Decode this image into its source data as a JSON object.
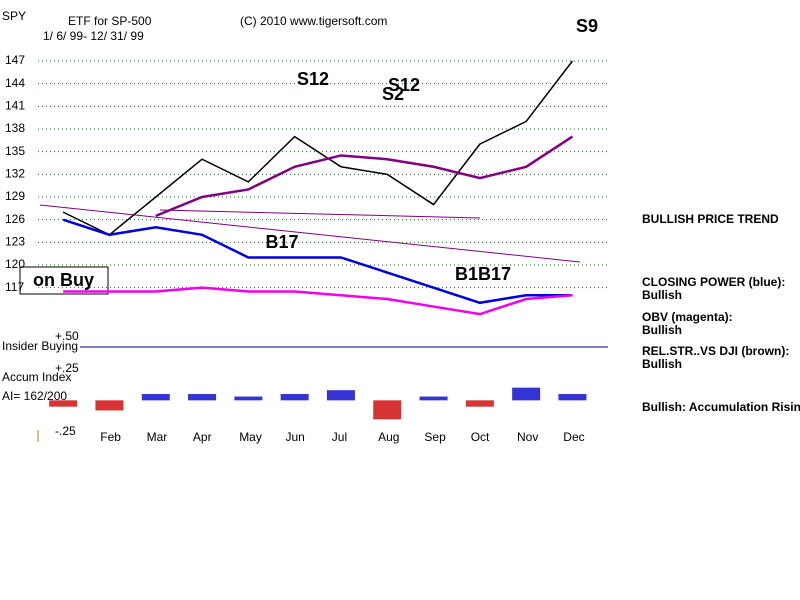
{
  "header": {
    "symbol": "SPY",
    "description": "ETF for SP-500",
    "copyright": "(C) 2010 www.tigersoft.com",
    "dates": "1/ 6/ 99- 12/ 31/ 99",
    "status": "on Buy"
  },
  "sidebar": [
    "BULLISH PRICE TREND",
    "CLOSING POWER (blue):",
    "Bullish",
    "OBV (magenta):",
    "Bullish",
    "REL.STR..VS DJI (brown):",
    "Bullish",
    "Bullish: Accumulation Rising"
  ],
  "chart_data": [
    {
      "type": "line",
      "categories": [
        null,
        "Feb",
        "Mar",
        "Apr",
        "May",
        "Jun",
        "Jul",
        "Aug",
        "Sep",
        "Oct",
        "Nov",
        "Dec"
      ],
      "series": [
        {
          "color": "#000000",
          "values": [
            127,
            124,
            129,
            134,
            131,
            137,
            133,
            132,
            128,
            136,
            139,
            147
          ]
        },
        {
          "color": "#800080",
          "values": [
            null,
            null,
            126.5,
            129,
            130,
            133,
            134.5,
            134,
            133,
            131.5,
            133,
            137
          ]
        },
        {
          "color": "#0000dd",
          "values": [
            126,
            124,
            125,
            124,
            121,
            121,
            121,
            119,
            117,
            115,
            116,
            116
          ]
        },
        {
          "color": "#ee00ee",
          "values": [
            116.5,
            116.5,
            116.5,
            117,
            116.5,
            116.5,
            116,
            115.5,
            114.5,
            113.5,
            115.5,
            116
          ]
        }
      ],
      "ylim": [
        114,
        149
      ],
      "yticks": [
        117,
        120,
        123,
        126,
        129,
        132,
        135,
        138,
        141,
        144,
        147
      ],
      "grid": true,
      "annotations": [
        "S12",
        "S2",
        "S12",
        "B17",
        "B1B17",
        "S9"
      ]
    },
    {
      "type": "bar",
      "label_insider": "Insider Buying",
      "label_accum": "Accum Index",
      "label_ai": "AI= 162/200",
      "categories": [
        null,
        "Feb",
        "Mar",
        "Apr",
        "May",
        "Jun",
        "Jul",
        "Aug",
        "Sep",
        "Oct",
        "Nov",
        "Dec"
      ],
      "values": [
        -0.05,
        -0.08,
        0.05,
        0.05,
        0.03,
        0.05,
        0.08,
        -0.15,
        0.03,
        -0.05,
        0.1,
        0.05
      ],
      "ylim": [
        -0.25,
        0.5
      ],
      "yticks": [
        {
          "value": 0.5,
          "label": "+.50"
        },
        {
          "value": 0.25,
          "label": "+.25"
        },
        {
          "value": -0.25,
          "label": "-.25"
        }
      ]
    }
  ]
}
